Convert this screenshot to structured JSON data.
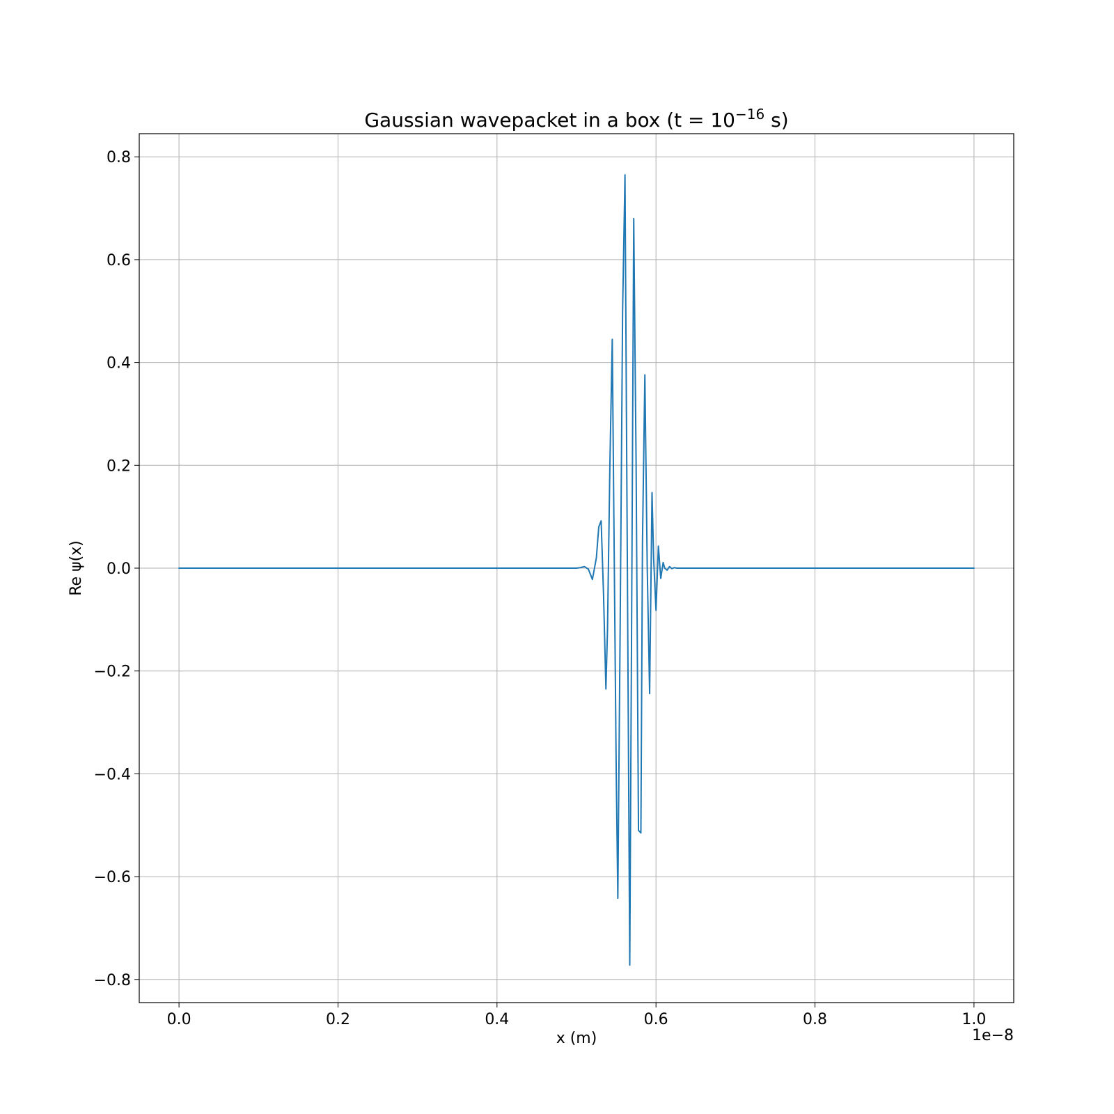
{
  "chart_data": {
    "type": "line",
    "title": {
      "main": "Gaussian wavepacket in a box (t = 10",
      "superscript": "−16",
      "suffix": " s)"
    },
    "xlabel": "x (m)",
    "ylabel": "Re ψ(x)",
    "x_offset_text": "1e−8",
    "xlim": [
      -0.05,
      1.05
    ],
    "ylim": [
      -0.845,
      0.845
    ],
    "xticks": [
      0.0,
      0.2,
      0.4,
      0.6,
      0.8,
      1.0
    ],
    "xtick_labels": [
      "0.0",
      "0.2",
      "0.4",
      "0.6",
      "0.8",
      "1.0"
    ],
    "yticks": [
      0.8,
      0.6,
      0.4,
      0.2,
      0.0,
      -0.2,
      -0.4,
      -0.6,
      -0.8
    ],
    "ytick_labels": [
      "0.8",
      "0.6",
      "0.4",
      "0.2",
      "0.0",
      "−0.2",
      "−0.4",
      "−0.6",
      "−0.8"
    ],
    "grid": true,
    "line_color": "#1f77b4",
    "series": [
      {
        "x": [
          0.0,
          0.45,
          0.5,
          0.505,
          0.51,
          0.515,
          0.52,
          0.525,
          0.528,
          0.531,
          0.534,
          0.537,
          0.539,
          0.542,
          0.545,
          0.547,
          0.55,
          0.552,
          0.555,
          0.558,
          0.561,
          0.564,
          0.567,
          0.569,
          0.572,
          0.575,
          0.578,
          0.581,
          0.583,
          0.586,
          0.589,
          0.592,
          0.595,
          0.597,
          0.6,
          0.603,
          0.606,
          0.609,
          0.611,
          0.614,
          0.617,
          0.62,
          0.623,
          0.626,
          0.64,
          0.7,
          1.0
        ],
        "y": [
          0.0,
          0.0,
          0.0,
          0.001,
          0.003,
          -0.002,
          -0.022,
          0.02,
          0.08,
          0.092,
          -0.05,
          -0.235,
          -0.12,
          0.2,
          0.445,
          0.1,
          -0.4,
          -0.642,
          -0.1,
          0.5,
          0.765,
          0.0,
          -0.772,
          -0.2,
          0.68,
          0.2,
          -0.51,
          -0.515,
          0.05,
          0.376,
          0.0,
          -0.244,
          0.147,
          0.02,
          -0.082,
          0.043,
          -0.02,
          0.011,
          0.0,
          -0.004,
          0.003,
          -0.001,
          0.001,
          0.0,
          0.0,
          0.0,
          0.0
        ]
      }
    ]
  }
}
